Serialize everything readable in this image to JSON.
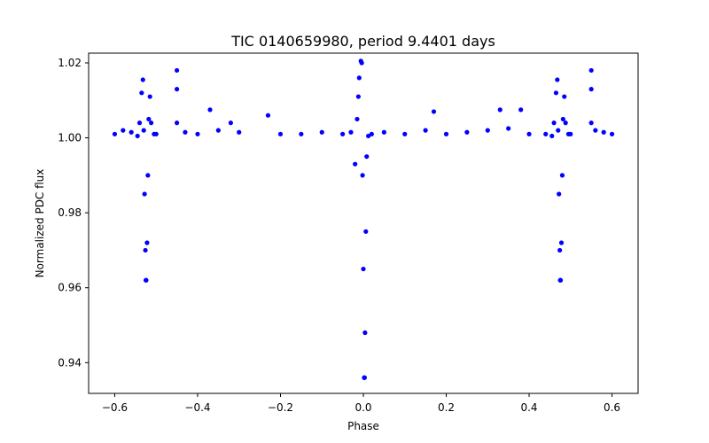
{
  "chart_data": {
    "type": "scatter",
    "title": "TIC 0140659980, period 9.4401 days",
    "xlabel": "Phase",
    "ylabel": "Normalized PDC flux",
    "xlim": [
      -0.663,
      0.663
    ],
    "ylim": [
      0.9318,
      1.0226
    ],
    "xticks": [
      -0.6,
      -0.4,
      -0.2,
      0.0,
      0.2,
      0.4,
      0.6
    ],
    "xtick_labels": [
      "−0.6",
      "−0.4",
      "−0.2",
      "0.0",
      "0.2",
      "0.4",
      "0.6"
    ],
    "yticks": [
      0.94,
      0.96,
      0.98,
      1.0,
      1.02
    ],
    "ytick_labels": [
      "0.94",
      "0.96",
      "0.98",
      "1.00",
      "1.02"
    ],
    "grid": false,
    "legend": "none",
    "marker_color": "#0000ff",
    "series": [
      {
        "points": [
          [
            -0.6,
            1.001
          ],
          [
            -0.58,
            1.002
          ],
          [
            -0.56,
            1.0015
          ],
          [
            -0.545,
            1.0005
          ],
          [
            -0.54,
            1.004
          ],
          [
            -0.535,
            1.012
          ],
          [
            -0.532,
            1.0155
          ],
          [
            -0.53,
            1.002
          ],
          [
            -0.528,
            0.985
          ],
          [
            -0.526,
            0.97
          ],
          [
            -0.525,
            0.962
          ],
          [
            -0.524,
            0.962
          ],
          [
            -0.522,
            0.972
          ],
          [
            -0.52,
            0.99
          ],
          [
            -0.518,
            1.005
          ],
          [
            -0.515,
            1.011
          ],
          [
            -0.512,
            1.004
          ],
          [
            -0.505,
            1.001
          ],
          [
            -0.5,
            1.001
          ],
          [
            -0.45,
            1.018
          ],
          [
            -0.45,
            1.013
          ],
          [
            -0.45,
            1.004
          ],
          [
            -0.43,
            1.0015
          ],
          [
            -0.4,
            1.001
          ],
          [
            -0.37,
            1.0075
          ],
          [
            -0.35,
            1.002
          ],
          [
            -0.32,
            1.004
          ],
          [
            -0.3,
            1.0015
          ],
          [
            -0.23,
            1.006
          ],
          [
            -0.2,
            1.001
          ],
          [
            -0.15,
            1.001
          ],
          [
            -0.1,
            1.0015
          ],
          [
            -0.05,
            1.001
          ],
          [
            -0.03,
            1.0015
          ],
          [
            -0.02,
            0.993
          ],
          [
            -0.015,
            1.005
          ],
          [
            -0.012,
            1.011
          ],
          [
            -0.01,
            1.016
          ],
          [
            -0.006,
            1.0205
          ],
          [
            -0.004,
            1.02
          ],
          [
            -0.002,
            0.99
          ],
          [
            0.0,
            0.965
          ],
          [
            0.002,
            0.936
          ],
          [
            0.003,
            0.936
          ],
          [
            0.004,
            0.948
          ],
          [
            0.006,
            0.975
          ],
          [
            0.008,
            0.995
          ],
          [
            0.012,
            1.0005
          ],
          [
            0.02,
            1.001
          ],
          [
            0.05,
            1.0015
          ],
          [
            0.1,
            1.001
          ],
          [
            0.15,
            1.002
          ],
          [
            0.17,
            1.007
          ],
          [
            0.2,
            1.001
          ],
          [
            0.25,
            1.0015
          ],
          [
            0.3,
            1.002
          ],
          [
            0.33,
            1.0075
          ],
          [
            0.35,
            1.0025
          ],
          [
            0.38,
            1.0075
          ],
          [
            0.4,
            1.001
          ],
          [
            0.44,
            1.001
          ],
          [
            0.455,
            1.0005
          ],
          [
            0.46,
            1.004
          ],
          [
            0.465,
            1.012
          ],
          [
            0.468,
            1.0155
          ],
          [
            0.47,
            1.002
          ],
          [
            0.472,
            0.985
          ],
          [
            0.474,
            0.97
          ],
          [
            0.475,
            0.962
          ],
          [
            0.476,
            0.962
          ],
          [
            0.478,
            0.972
          ],
          [
            0.48,
            0.99
          ],
          [
            0.482,
            1.005
          ],
          [
            0.485,
            1.011
          ],
          [
            0.488,
            1.004
          ],
          [
            0.495,
            1.001
          ],
          [
            0.5,
            1.001
          ],
          [
            0.55,
            1.018
          ],
          [
            0.55,
            1.013
          ],
          [
            0.55,
            1.004
          ],
          [
            0.56,
            1.002
          ],
          [
            0.58,
            1.0015
          ],
          [
            0.6,
            1.001
          ]
        ]
      }
    ]
  }
}
